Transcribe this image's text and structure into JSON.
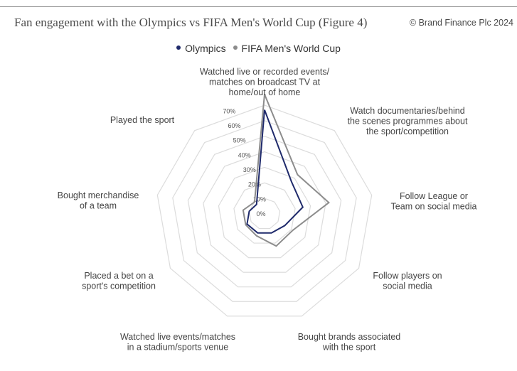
{
  "header": {
    "title": "Fan engagement with the Olympics vs FIFA Men's World Cup (Figure 4)",
    "copyright": "© Brand Finance Plc 2024"
  },
  "colors": {
    "olympics": "#1f2a6b",
    "fifa": "#8c8c8c",
    "grid": "#dcdcdc",
    "topline": "#8a8a8a"
  },
  "chart_data": {
    "type": "radar",
    "categories": [
      [
        "Watched live or recorded events/",
        "matches on broadcast TV at",
        "home/out of home"
      ],
      [
        "Watch documentaries/behind",
        "the scenes programmes about",
        "the sport/competition"
      ],
      [
        "Follow League or",
        "Team on social media"
      ],
      [
        "Follow players on",
        "social media"
      ],
      [
        "Bought brands associated",
        "with the sport"
      ],
      [
        "Watched live events/matches",
        "in a stadium/sports venue"
      ],
      [
        "Placed a bet on a",
        "sport's competition"
      ],
      [
        "Bought merchandise",
        "of a team"
      ],
      [
        "Played the sport"
      ]
    ],
    "series": [
      {
        "name": "Olympics",
        "values": [
          67,
          27,
          25,
          15,
          13,
          13,
          13,
          10,
          8
        ]
      },
      {
        "name": "FIFA Men's World Cup",
        "values": [
          77,
          33,
          42,
          21,
          22,
          15,
          14,
          14,
          10
        ]
      }
    ],
    "rlim": [
      0,
      70
    ],
    "ticks": [
      "0%",
      "10%",
      "20%",
      "30%",
      "40%",
      "50%",
      "60%",
      "70%"
    ],
    "legend_position": "top-center",
    "grid": true
  }
}
